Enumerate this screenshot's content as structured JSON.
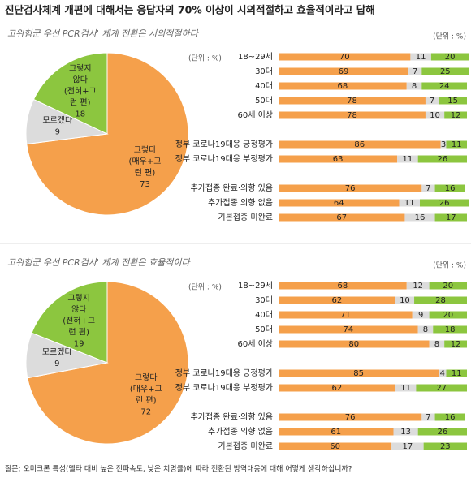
{
  "title": "진단검사체계 개편에 대해서는 응답자의 70% 이상이 시의적절하고 효율적이라고 답해",
  "question": "질문:  오미크론 특성(델타 대비 높은 전파속도, 낮은 치명률)에 따라 전환된 방역대응에 대해 어떻게 생각하십니까?",
  "chart_data": [
    {
      "type": "pie",
      "title": "'고위험군 우선 PCR검사' 체계 전환은 시의적절하다",
      "note": "(단위 : %)",
      "labels": [
        [
          "그렇다",
          "(매우+그",
          "런 편)"
        ],
        [
          "모르겠다"
        ],
        [
          "그렇지",
          "않다",
          "(전혀+그",
          "런 편)"
        ]
      ],
      "values": [
        73,
        9,
        18
      ],
      "colors": [
        "#f5a04b",
        "#dcdcdc",
        "#8cc63f"
      ]
    },
    {
      "type": "bar",
      "orientation": "horizontal",
      "stacked": true,
      "note": "(단위 : %)",
      "categories": [
        "18~29세",
        "30대",
        "40대",
        "50대",
        "60세 이상",
        null,
        "정부 코로나19대응 긍정평가",
        "정부 코로나19대응 부정평가",
        null,
        "추가접종 완료·의향 있음",
        "추가접종 의향 없음",
        "기본접종 미완료"
      ],
      "xlim": [
        0,
        100
      ],
      "series": [
        {
          "color": "#f5a04b",
          "values": [
            70,
            69,
            68,
            78,
            78,
            null,
            86,
            63,
            null,
            76,
            64,
            67
          ]
        },
        {
          "color": "#dcdcdc",
          "values": [
            11,
            7,
            8,
            7,
            10,
            null,
            3,
            11,
            null,
            7,
            11,
            16
          ]
        },
        {
          "color": "#8cc63f",
          "values": [
            20,
            25,
            24,
            15,
            12,
            null,
            11,
            26,
            null,
            16,
            26,
            17
          ]
        }
      ]
    },
    {
      "type": "pie",
      "title": "'고위험군 우선 PCR검사' 체계 전환은 효율적이다",
      "note": "(단위 : %)",
      "labels": [
        [
          "그렇다",
          "(매우+그",
          "런 편)"
        ],
        [
          "모르겠다"
        ],
        [
          "그렇지",
          "않다",
          "(전혀+그",
          "런 편)"
        ]
      ],
      "values": [
        72,
        9,
        19
      ],
      "colors": [
        "#f5a04b",
        "#dcdcdc",
        "#8cc63f"
      ]
    },
    {
      "type": "bar",
      "orientation": "horizontal",
      "stacked": true,
      "note": "(단위 : %)",
      "categories": [
        "18~29세",
        "30대",
        "40대",
        "50대",
        "60세 이상",
        null,
        "정부 코로나19대응 긍정평가",
        "정부 코로나19대응 부정평가",
        null,
        "추가접종 완료·의향 있음",
        "추가접종 의향 없음",
        "기본접종 미완료"
      ],
      "xlim": [
        0,
        100
      ],
      "series": [
        {
          "color": "#f5a04b",
          "values": [
            68,
            62,
            71,
            74,
            80,
            null,
            85,
            62,
            null,
            76,
            61,
            60
          ]
        },
        {
          "color": "#dcdcdc",
          "values": [
            12,
            10,
            9,
            8,
            8,
            null,
            4,
            11,
            null,
            7,
            13,
            17
          ]
        },
        {
          "color": "#8cc63f",
          "values": [
            20,
            28,
            20,
            18,
            12,
            null,
            11,
            27,
            null,
            16,
            26,
            23
          ]
        }
      ]
    }
  ]
}
